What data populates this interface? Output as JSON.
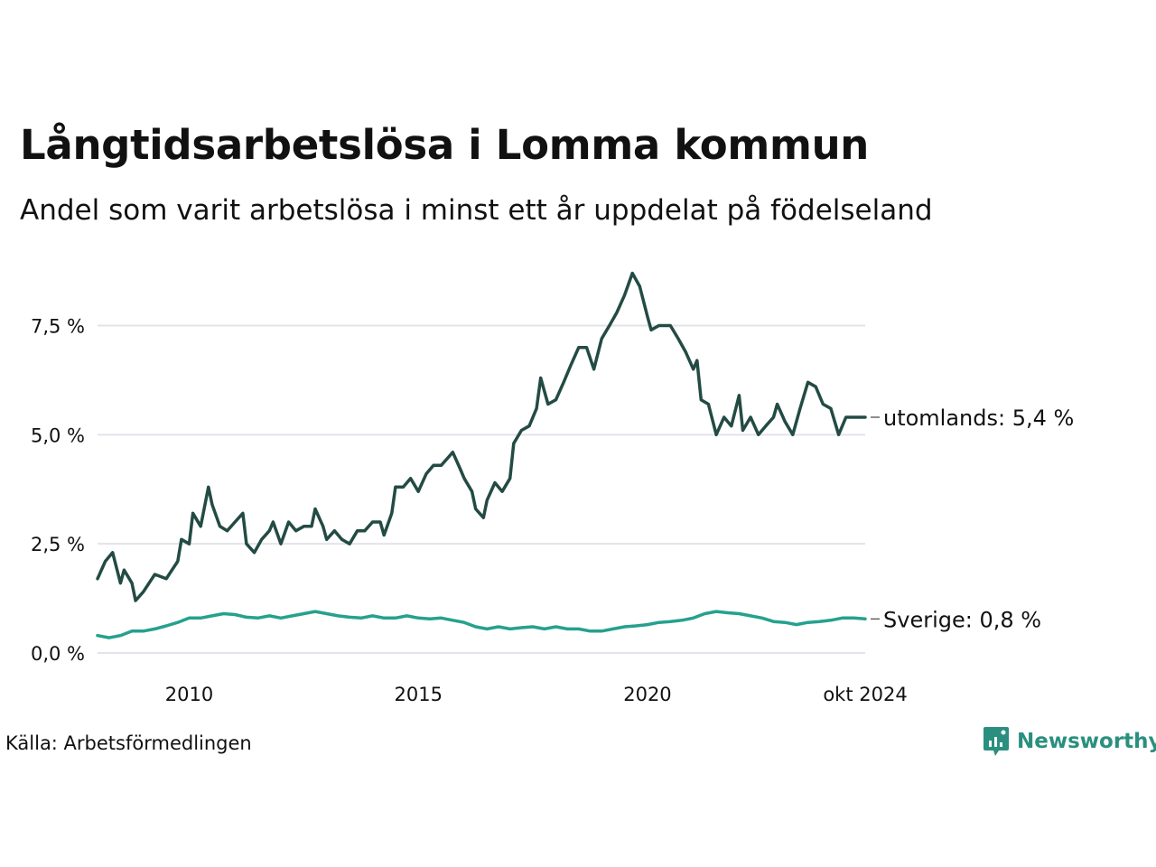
{
  "header": {
    "title": "Långtidsarbetslösa i Lomma kommun",
    "subtitle": "Andel som varit arbetslösa i minst ett år uppdelat på födelseland"
  },
  "footer": {
    "source": "Källa: Arbetsförmedlingen",
    "brand": "Newsworthy"
  },
  "colors": {
    "utomlands": "#234b44",
    "sverige": "#25a18e",
    "grid": "#e3e3ea",
    "brand": "#2a8f7f"
  },
  "chart_data": {
    "type": "line",
    "title": "Långtidsarbetslösa i Lomma kommun",
    "subtitle": "Andel som varit arbetslösa i minst ett år uppdelat på födelseland",
    "xlim": [
      2008.0,
      2024.75
    ],
    "ylim": [
      0,
      9.0
    ],
    "y_ticks": [
      {
        "value": 0,
        "label": "0,0 %"
      },
      {
        "value": 2.5,
        "label": "2,5 %"
      },
      {
        "value": 5.0,
        "label": "5,0 %"
      },
      {
        "value": 7.5,
        "label": "7,5 %"
      }
    ],
    "x_ticks": [
      {
        "value": 2010,
        "label": "2010"
      },
      {
        "value": 2015,
        "label": "2015"
      },
      {
        "value": 2020,
        "label": "2020"
      },
      {
        "value": 2024.75,
        "label": "okt 2024"
      }
    ],
    "grid": "horizontal",
    "series": [
      {
        "name": "utomlands",
        "end_label": "utomlands: 5,4 %",
        "color": "#234b44",
        "points": [
          [
            2008.0,
            1.7
          ],
          [
            2008.17,
            2.1
          ],
          [
            2008.33,
            2.3
          ],
          [
            2008.5,
            1.6
          ],
          [
            2008.58,
            1.9
          ],
          [
            2008.75,
            1.6
          ],
          [
            2008.83,
            1.2
          ],
          [
            2009.0,
            1.4
          ],
          [
            2009.25,
            1.8
          ],
          [
            2009.5,
            1.7
          ],
          [
            2009.75,
            2.1
          ],
          [
            2009.83,
            2.6
          ],
          [
            2010.0,
            2.5
          ],
          [
            2010.08,
            3.2
          ],
          [
            2010.25,
            2.9
          ],
          [
            2010.42,
            3.8
          ],
          [
            2010.5,
            3.4
          ],
          [
            2010.67,
            2.9
          ],
          [
            2010.83,
            2.8
          ],
          [
            2011.0,
            3.0
          ],
          [
            2011.17,
            3.2
          ],
          [
            2011.25,
            2.5
          ],
          [
            2011.42,
            2.3
          ],
          [
            2011.58,
            2.6
          ],
          [
            2011.75,
            2.8
          ],
          [
            2011.83,
            3.0
          ],
          [
            2012.0,
            2.5
          ],
          [
            2012.17,
            3.0
          ],
          [
            2012.33,
            2.8
          ],
          [
            2012.5,
            2.9
          ],
          [
            2012.67,
            2.9
          ],
          [
            2012.75,
            3.3
          ],
          [
            2012.92,
            2.9
          ],
          [
            2013.0,
            2.6
          ],
          [
            2013.17,
            2.8
          ],
          [
            2013.33,
            2.6
          ],
          [
            2013.5,
            2.5
          ],
          [
            2013.67,
            2.8
          ],
          [
            2013.83,
            2.8
          ],
          [
            2014.0,
            3.0
          ],
          [
            2014.17,
            3.0
          ],
          [
            2014.25,
            2.7
          ],
          [
            2014.42,
            3.2
          ],
          [
            2014.5,
            3.8
          ],
          [
            2014.67,
            3.8
          ],
          [
            2014.83,
            4.0
          ],
          [
            2015.0,
            3.7
          ],
          [
            2015.17,
            4.1
          ],
          [
            2015.33,
            4.3
          ],
          [
            2015.5,
            4.3
          ],
          [
            2015.67,
            4.5
          ],
          [
            2015.75,
            4.6
          ],
          [
            2015.92,
            4.2
          ],
          [
            2016.0,
            4.0
          ],
          [
            2016.17,
            3.7
          ],
          [
            2016.25,
            3.3
          ],
          [
            2016.42,
            3.1
          ],
          [
            2016.5,
            3.5
          ],
          [
            2016.67,
            3.9
          ],
          [
            2016.83,
            3.7
          ],
          [
            2017.0,
            4.0
          ],
          [
            2017.08,
            4.8
          ],
          [
            2017.25,
            5.1
          ],
          [
            2017.42,
            5.2
          ],
          [
            2017.58,
            5.6
          ],
          [
            2017.67,
            6.3
          ],
          [
            2017.83,
            5.7
          ],
          [
            2018.0,
            5.8
          ],
          [
            2018.17,
            6.2
          ],
          [
            2018.33,
            6.6
          ],
          [
            2018.5,
            7.0
          ],
          [
            2018.67,
            7.0
          ],
          [
            2018.83,
            6.5
          ],
          [
            2019.0,
            7.2
          ],
          [
            2019.17,
            7.5
          ],
          [
            2019.33,
            7.8
          ],
          [
            2019.5,
            8.2
          ],
          [
            2019.67,
            8.7
          ],
          [
            2019.83,
            8.4
          ],
          [
            2020.0,
            7.7
          ],
          [
            2020.08,
            7.4
          ],
          [
            2020.25,
            7.5
          ],
          [
            2020.5,
            7.5
          ],
          [
            2020.67,
            7.2
          ],
          [
            2020.83,
            6.9
          ],
          [
            2021.0,
            6.5
          ],
          [
            2021.08,
            6.7
          ],
          [
            2021.17,
            5.8
          ],
          [
            2021.33,
            5.7
          ],
          [
            2021.5,
            5.0
          ],
          [
            2021.67,
            5.4
          ],
          [
            2021.83,
            5.2
          ],
          [
            2022.0,
            5.9
          ],
          [
            2022.08,
            5.1
          ],
          [
            2022.25,
            5.4
          ],
          [
            2022.42,
            5.0
          ],
          [
            2022.58,
            5.2
          ],
          [
            2022.75,
            5.4
          ],
          [
            2022.83,
            5.7
          ],
          [
            2023.0,
            5.3
          ],
          [
            2023.17,
            5.0
          ],
          [
            2023.33,
            5.6
          ],
          [
            2023.5,
            6.2
          ],
          [
            2023.67,
            6.1
          ],
          [
            2023.83,
            5.7
          ],
          [
            2024.0,
            5.6
          ],
          [
            2024.17,
            5.0
          ],
          [
            2024.33,
            5.4
          ],
          [
            2024.75,
            5.4
          ]
        ]
      },
      {
        "name": "Sverige",
        "end_label": "Sverige: 0,8 %",
        "color": "#25a18e",
        "points": [
          [
            2008.0,
            0.4
          ],
          [
            2008.25,
            0.35
          ],
          [
            2008.5,
            0.4
          ],
          [
            2008.75,
            0.5
          ],
          [
            2009.0,
            0.5
          ],
          [
            2009.25,
            0.55
          ],
          [
            2009.5,
            0.62
          ],
          [
            2009.75,
            0.7
          ],
          [
            2010.0,
            0.8
          ],
          [
            2010.25,
            0.8
          ],
          [
            2010.5,
            0.85
          ],
          [
            2010.75,
            0.9
          ],
          [
            2011.0,
            0.88
          ],
          [
            2011.25,
            0.82
          ],
          [
            2011.5,
            0.8
          ],
          [
            2011.75,
            0.85
          ],
          [
            2012.0,
            0.8
          ],
          [
            2012.25,
            0.85
          ],
          [
            2012.5,
            0.9
          ],
          [
            2012.75,
            0.95
          ],
          [
            2013.0,
            0.9
          ],
          [
            2013.25,
            0.85
          ],
          [
            2013.5,
            0.82
          ],
          [
            2013.75,
            0.8
          ],
          [
            2014.0,
            0.85
          ],
          [
            2014.25,
            0.8
          ],
          [
            2014.5,
            0.8
          ],
          [
            2014.75,
            0.85
          ],
          [
            2015.0,
            0.8
          ],
          [
            2015.25,
            0.78
          ],
          [
            2015.5,
            0.8
          ],
          [
            2015.75,
            0.75
          ],
          [
            2016.0,
            0.7
          ],
          [
            2016.25,
            0.6
          ],
          [
            2016.5,
            0.55
          ],
          [
            2016.75,
            0.6
          ],
          [
            2017.0,
            0.55
          ],
          [
            2017.25,
            0.58
          ],
          [
            2017.5,
            0.6
          ],
          [
            2017.75,
            0.55
          ],
          [
            2018.0,
            0.6
          ],
          [
            2018.25,
            0.55
          ],
          [
            2018.5,
            0.55
          ],
          [
            2018.75,
            0.5
          ],
          [
            2019.0,
            0.5
          ],
          [
            2019.25,
            0.55
          ],
          [
            2019.5,
            0.6
          ],
          [
            2019.75,
            0.62
          ],
          [
            2020.0,
            0.65
          ],
          [
            2020.25,
            0.7
          ],
          [
            2020.5,
            0.72
          ],
          [
            2020.75,
            0.75
          ],
          [
            2021.0,
            0.8
          ],
          [
            2021.25,
            0.9
          ],
          [
            2021.5,
            0.95
          ],
          [
            2021.75,
            0.92
          ],
          [
            2022.0,
            0.9
          ],
          [
            2022.25,
            0.85
          ],
          [
            2022.5,
            0.8
          ],
          [
            2022.75,
            0.72
          ],
          [
            2023.0,
            0.7
          ],
          [
            2023.25,
            0.65
          ],
          [
            2023.5,
            0.7
          ],
          [
            2023.75,
            0.72
          ],
          [
            2024.0,
            0.75
          ],
          [
            2024.25,
            0.8
          ],
          [
            2024.5,
            0.8
          ],
          [
            2024.75,
            0.78
          ]
        ]
      }
    ]
  }
}
